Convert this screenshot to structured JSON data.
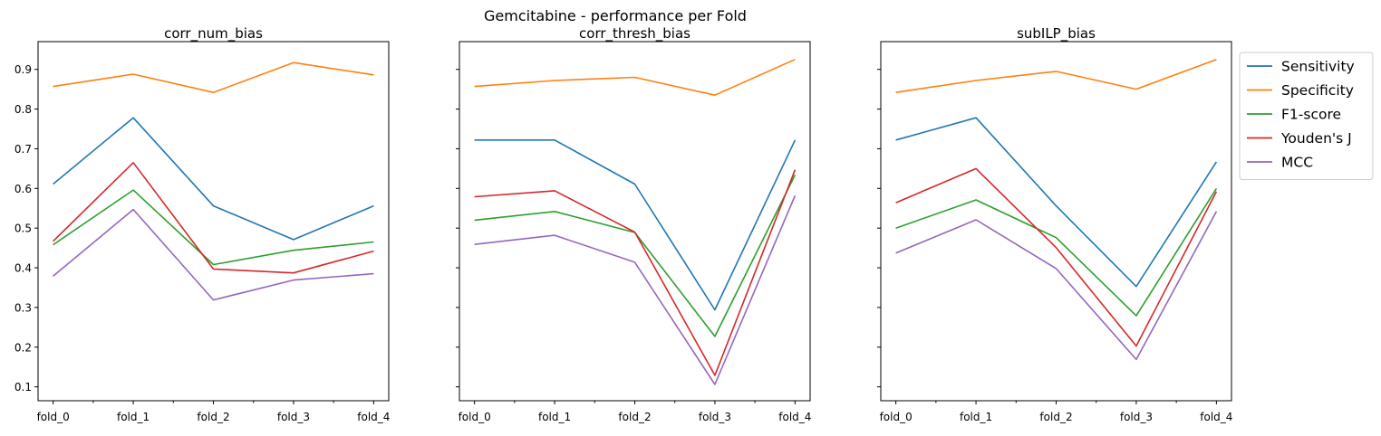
{
  "suptitle": "Gemcitabine - performance per Fold",
  "chart_data": [
    {
      "type": "line",
      "title": "corr_num_bias",
      "categories": [
        "fold_0",
        "fold_1",
        "fold_2",
        "fold_3",
        "fold_4"
      ],
      "ylim": [
        0.065,
        0.97
      ],
      "yticks": [
        0.1,
        0.2,
        0.3,
        0.4,
        0.5,
        0.6,
        0.7,
        0.8,
        0.9
      ],
      "ytick_labels_visible": true,
      "series": [
        {
          "name": "Sensitivity",
          "values": [
            0.611,
            0.778,
            0.556,
            0.471,
            0.556
          ]
        },
        {
          "name": "Specificity",
          "values": [
            0.857,
            0.888,
            0.842,
            0.917,
            0.886
          ]
        },
        {
          "name": "F1-score",
          "values": [
            0.458,
            0.596,
            0.408,
            0.444,
            0.465
          ]
        },
        {
          "name": "Youden's J",
          "values": [
            0.467,
            0.665,
            0.397,
            0.387,
            0.442
          ]
        },
        {
          "name": "MCC",
          "values": [
            0.379,
            0.547,
            0.319,
            0.369,
            0.385
          ]
        }
      ]
    },
    {
      "type": "line",
      "title": "corr_thresh_bias",
      "categories": [
        "fold_0",
        "fold_1",
        "fold_2",
        "fold_3",
        "fold_4"
      ],
      "ylim": [
        0.065,
        0.97
      ],
      "yticks": [
        0.1,
        0.2,
        0.3,
        0.4,
        0.5,
        0.6,
        0.7,
        0.8,
        0.9
      ],
      "ytick_labels_visible": false,
      "series": [
        {
          "name": "Sensitivity",
          "values": [
            0.722,
            0.722,
            0.611,
            0.294,
            0.722
          ]
        },
        {
          "name": "Specificity",
          "values": [
            0.857,
            0.872,
            0.88,
            0.835,
            0.925
          ]
        },
        {
          "name": "F1-score",
          "values": [
            0.52,
            0.542,
            0.489,
            0.227,
            0.634
          ]
        },
        {
          "name": "Youden's J",
          "values": [
            0.579,
            0.594,
            0.49,
            0.129,
            0.647
          ]
        },
        {
          "name": "MCC",
          "values": [
            0.459,
            0.482,
            0.414,
            0.106,
            0.582
          ]
        }
      ]
    },
    {
      "type": "line",
      "title": "subILP_bias",
      "categories": [
        "fold_0",
        "fold_1",
        "fold_2",
        "fold_3",
        "fold_4"
      ],
      "ylim": [
        0.065,
        0.97
      ],
      "yticks": [
        0.1,
        0.2,
        0.3,
        0.4,
        0.5,
        0.6,
        0.7,
        0.8,
        0.9
      ],
      "ytick_labels_visible": false,
      "series": [
        {
          "name": "Sensitivity",
          "values": [
            0.722,
            0.778,
            0.556,
            0.353,
            0.667
          ]
        },
        {
          "name": "Specificity",
          "values": [
            0.842,
            0.872,
            0.895,
            0.85,
            0.925
          ]
        },
        {
          "name": "F1-score",
          "values": [
            0.5,
            0.571,
            0.476,
            0.279,
            0.6
          ]
        },
        {
          "name": "Youden's J",
          "values": [
            0.564,
            0.65,
            0.451,
            0.203,
            0.592
          ]
        },
        {
          "name": "MCC",
          "values": [
            0.437,
            0.521,
            0.398,
            0.169,
            0.542
          ]
        }
      ]
    }
  ],
  "legend": {
    "placement": "outside-right",
    "entries": [
      {
        "name": "Sensitivity",
        "color": "#1f77b4"
      },
      {
        "name": "Specificity",
        "color": "#ff7f0e"
      },
      {
        "name": "F1-score",
        "color": "#2ca02c"
      },
      {
        "name": "Youden's J",
        "color": "#d62728"
      },
      {
        "name": "MCC",
        "color": "#9467bd"
      }
    ]
  },
  "colors": {
    "Sensitivity": "#1f77b4",
    "Specificity": "#ff7f0e",
    "F1-score": "#2ca02c",
    "Youden's J": "#d62728",
    "MCC": "#9467bd"
  }
}
